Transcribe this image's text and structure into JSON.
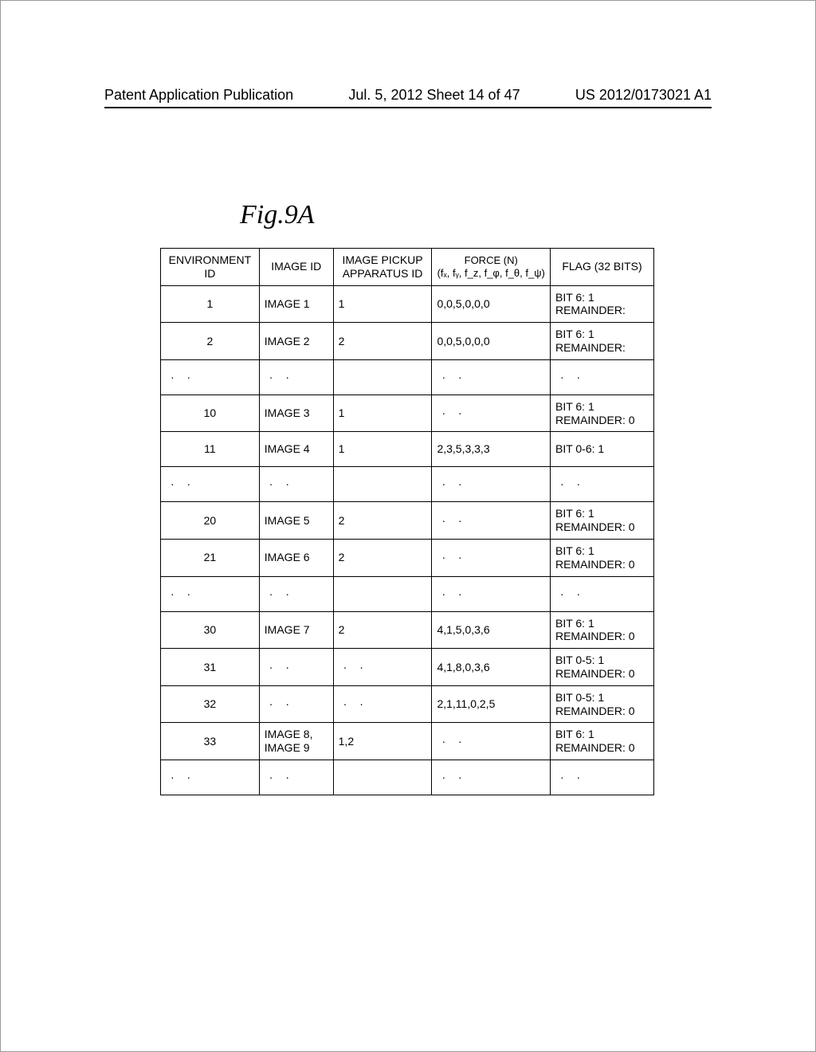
{
  "header": {
    "left": "Patent Application Publication",
    "middle": "Jul. 5, 2012  Sheet 14 of 47",
    "right": "US 2012/0173021 A1"
  },
  "figure_label": "Fig.9A",
  "table": {
    "columns": [
      "ENVIRONMENT\nID",
      "IMAGE ID",
      "IMAGE PICKUP\nAPPARATUS ID",
      "FORCE (N)\n(fₓ, fᵧ, f_z, f_φ, f_θ, f_ψ)",
      "FLAG (32 BITS)"
    ],
    "rows": [
      {
        "env": "1",
        "image": "IMAGE 1",
        "app": "1",
        "force": "0,0,5,0,0,0",
        "flag": "BIT 6: 1\nREMAINDER:"
      },
      {
        "env": "2",
        "image": "IMAGE 2",
        "app": "2",
        "force": "0,0,5,0,0,0",
        "flag": "BIT 6: 1\nREMAINDER:"
      },
      {
        "env": "· ·",
        "image": "· ·",
        "app": "",
        "force": "· ·",
        "flag": "· ·"
      },
      {
        "env": "10",
        "image": "IMAGE 3",
        "app": "1",
        "force": "· ·",
        "flag": "BIT 6: 1\nREMAINDER: 0"
      },
      {
        "env": "11",
        "image": "IMAGE 4",
        "app": "1",
        "force": "2,3,5,3,3,3",
        "flag": "BIT 0-6: 1"
      },
      {
        "env": "· ·",
        "image": "· ·",
        "app": "",
        "force": "· ·",
        "flag": "· ·"
      },
      {
        "env": "20",
        "image": "IMAGE 5",
        "app": "2",
        "force": "· ·",
        "flag": "BIT 6: 1\nREMAINDER: 0"
      },
      {
        "env": "21",
        "image": "IMAGE 6",
        "app": "2",
        "force": "· ·",
        "flag": "BIT 6: 1\nREMAINDER: 0"
      },
      {
        "env": "· ·",
        "image": "· ·",
        "app": "",
        "force": "· ·",
        "flag": "· ·"
      },
      {
        "env": "30",
        "image": "IMAGE 7",
        "app": "2",
        "force": "4,1,5,0,3,6",
        "flag": "BIT 6: 1\nREMAINDER: 0"
      },
      {
        "env": "31",
        "image": "· ·",
        "app": "· ·",
        "force": "4,1,8,0,3,6",
        "flag": "BIT 0-5: 1\nREMAINDER: 0"
      },
      {
        "env": "32",
        "image": "· ·",
        "app": "· ·",
        "force": "2,1,11,0,2,5",
        "flag": "BIT 0-5: 1\nREMAINDER: 0"
      },
      {
        "env": "33",
        "image": "IMAGE 8,\nIMAGE 9",
        "app": "1,2",
        "force": "· ·",
        "flag": "BIT 6: 1\nREMAINDER: 0"
      },
      {
        "env": "· ·",
        "image": "· ·",
        "app": "",
        "force": "· ·",
        "flag": "· ·"
      }
    ]
  }
}
